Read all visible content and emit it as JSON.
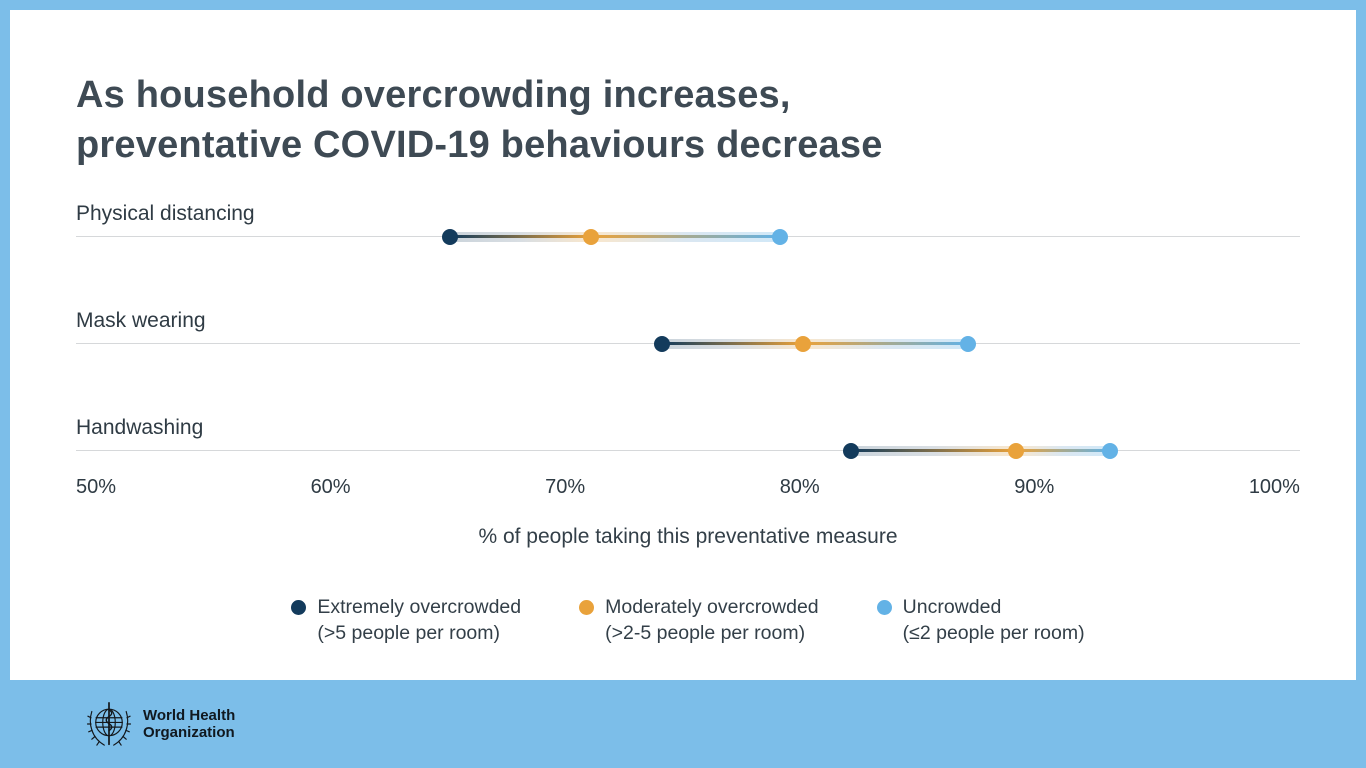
{
  "theme": {
    "background_blue": "#7cbee9",
    "card_background": "#ffffff",
    "title_color": "#3e4a54",
    "text_color": "#333f48",
    "gridline_color": "#d6d8da"
  },
  "chart": {
    "title_line1": "As household overcrowding increases,",
    "title_line2": "preventative COVID-19 behaviours decrease"
  },
  "chart_data": {
    "type": "dumbbell",
    "title": "As household overcrowding increases, preventative COVID-19 behaviours decrease",
    "categories": [
      "Physical distancing",
      "Mask wearing",
      "Handwashing"
    ],
    "series": [
      {
        "name": "Extremely overcrowded",
        "sublabel": "(>5 people per room)",
        "color": "#133b5c",
        "values": [
          65,
          74,
          82
        ]
      },
      {
        "name": "Moderately overcrowded",
        "sublabel": "(>2-5 people per room)",
        "color": "#e9a23b",
        "values": [
          71,
          80,
          89
        ]
      },
      {
        "name": "Uncrowded",
        "sublabel": "(≤2 people per room)",
        "color": "#63b2e6",
        "values": [
          79,
          87,
          93
        ]
      }
    ],
    "xlim": [
      50,
      100
    ],
    "x_ticks": [
      "50%",
      "60%",
      "70%",
      "80%",
      "90%",
      "100%"
    ],
    "xlabel": "% of people taking this preventative measure",
    "legend_position": "bottom",
    "grid": "per-row horizontal lines"
  },
  "footer": {
    "logo": "who-emblem",
    "org_name_line1": "World Health",
    "org_name_line2": "Organization"
  }
}
